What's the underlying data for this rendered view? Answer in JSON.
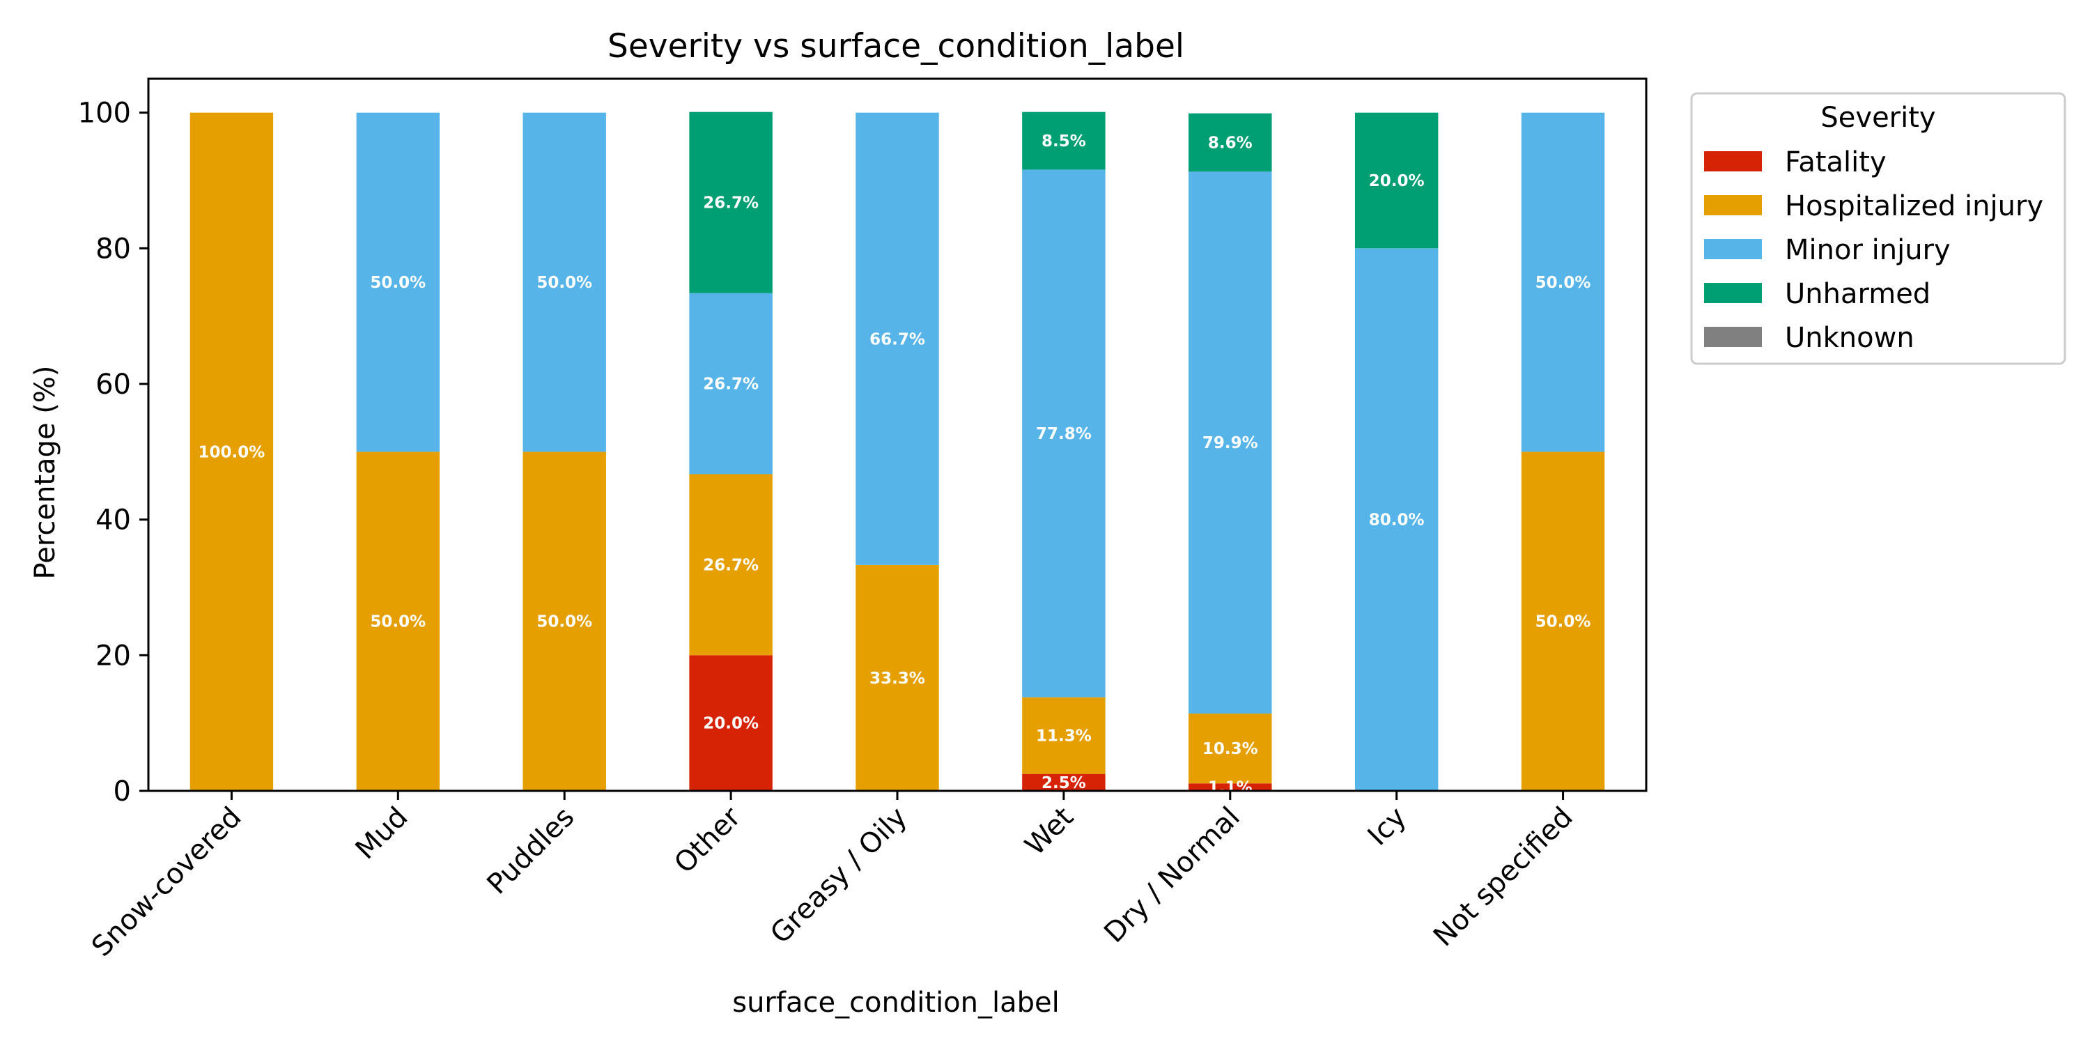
{
  "chart_data": {
    "type": "bar",
    "stacked": true,
    "title": "Severity vs surface_condition_label",
    "xlabel": "surface_condition_label",
    "ylabel": "Percentage (%)",
    "ylim": [
      0,
      105
    ],
    "yticks": [
      0,
      20,
      40,
      60,
      80,
      100
    ],
    "grid": false,
    "categories": [
      "Snow-covered",
      "Mud",
      "Puddles",
      "Other",
      "Greasy / Oily",
      "Wet",
      "Dry / Normal",
      "Icy",
      "Not specified"
    ],
    "legend": {
      "title": "Severity",
      "placement": "outside-top-right"
    },
    "series": [
      {
        "name": "Fatality",
        "color": "#d62305",
        "values": [
          0,
          0,
          0,
          20.0,
          0,
          2.5,
          1.1,
          0,
          0
        ]
      },
      {
        "name": "Hospitalized injury",
        "color": "#e69f00",
        "values": [
          100.0,
          50.0,
          50.0,
          26.7,
          33.3,
          11.3,
          10.3,
          0,
          50.0
        ]
      },
      {
        "name": "Minor injury",
        "color": "#56b4e9",
        "values": [
          0,
          50.0,
          50.0,
          26.7,
          66.7,
          77.8,
          79.9,
          80.0,
          50.0
        ]
      },
      {
        "name": "Unharmed",
        "color": "#009e73",
        "values": [
          0,
          0,
          0,
          26.7,
          0,
          8.5,
          8.6,
          20.0,
          0
        ]
      },
      {
        "name": "Unknown",
        "color": "#808080",
        "values": [
          0,
          0,
          0,
          0,
          0,
          0,
          0,
          0,
          0
        ]
      }
    ],
    "data_labels": [
      {
        "series": "Fatality",
        "labels": [
          "",
          "",
          "",
          "20.0%",
          "",
          "2.5%",
          "1.1%",
          "",
          ""
        ]
      },
      {
        "series": "Hospitalized injury",
        "labels": [
          "100.0%",
          "50.0%",
          "50.0%",
          "26.7%",
          "33.3%",
          "11.3%",
          "10.3%",
          "",
          "50.0%"
        ]
      },
      {
        "series": "Minor injury",
        "labels": [
          "",
          "50.0%",
          "50.0%",
          "26.7%",
          "66.7%",
          "77.8%",
          "79.9%",
          "80.0%",
          "50.0%"
        ]
      },
      {
        "series": "Unharmed",
        "labels": [
          "",
          "",
          "",
          "26.7%",
          "",
          "8.5%",
          "8.6%",
          "20.0%",
          ""
        ]
      },
      {
        "series": "Unknown",
        "labels": [
          "",
          "",
          "",
          "",
          "",
          "",
          "",
          "",
          ""
        ]
      }
    ]
  }
}
